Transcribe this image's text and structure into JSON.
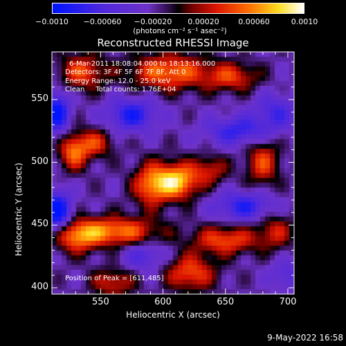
{
  "colorbar": {
    "min": -0.001,
    "max": 0.001,
    "tick_labels": [
      "−0.0010",
      "−0.00060",
      "−0.00020",
      "0.00020",
      "0.00060",
      "0.0010"
    ],
    "units": "(photons cm⁻² s⁻¹ asec⁻²)"
  },
  "chart_data": {
    "type": "heatmap",
    "title": "Reconstructed RHESSI Image",
    "xlabel": "Heliocentric X (arcsec)",
    "ylabel": "Heliocentric Y (arcsec)",
    "xlim": [
      511,
      705
    ],
    "ylim": [
      395,
      588
    ],
    "x_ticks": [
      550,
      600,
      650,
      700
    ],
    "y_ticks": [
      400,
      450,
      500,
      550
    ],
    "x_tick_labels": [
      "550",
      "600",
      "650",
      "700"
    ],
    "y_tick_labels": [
      "400",
      "450",
      "500",
      "550"
    ],
    "annotations": [
      "6-Mar-2011 18:08:04.000 to 18:13:16.000",
      "Detectors: 3F 4F 5F 6F 7F 8F, Att 0",
      "Energy Range: 12.0 - 25.0 keV",
      "Clean     Total counts: 1.76E+04"
    ],
    "peak_label": "Position of Peak = [611,485]",
    "peak": [
      611,
      485
    ],
    "sources": [
      {
        "x": 611,
        "y": 485,
        "amp": 0.001,
        "sx": 12,
        "sy": 10
      },
      {
        "x": 590,
        "y": 482,
        "amp": 0.0007,
        "sx": 10,
        "sy": 12
      },
      {
        "x": 638,
        "y": 494,
        "amp": 0.00045,
        "sx": 10,
        "sy": 8
      },
      {
        "x": 528,
        "y": 508,
        "amp": 0.0007,
        "sx": 8,
        "sy": 10
      },
      {
        "x": 545,
        "y": 515,
        "amp": 0.00055,
        "sx": 10,
        "sy": 8
      },
      {
        "x": 605,
        "y": 572,
        "amp": 0.00075,
        "sx": 22,
        "sy": 10
      },
      {
        "x": 655,
        "y": 568,
        "amp": 0.00055,
        "sx": 15,
        "sy": 8
      },
      {
        "x": 535,
        "y": 572,
        "amp": 0.0006,
        "sx": 13,
        "sy": 10
      },
      {
        "x": 680,
        "y": 500,
        "amp": 0.0006,
        "sx": 9,
        "sy": 13
      },
      {
        "x": 560,
        "y": 445,
        "amp": 0.0008,
        "sx": 25,
        "sy": 8
      },
      {
        "x": 530,
        "y": 440,
        "amp": 0.0006,
        "sx": 12,
        "sy": 9
      },
      {
        "x": 650,
        "y": 438,
        "amp": 0.00065,
        "sx": 18,
        "sy": 8
      },
      {
        "x": 690,
        "y": 445,
        "amp": 0.00045,
        "sx": 10,
        "sy": 10
      },
      {
        "x": 622,
        "y": 412,
        "amp": 0.00065,
        "sx": 14,
        "sy": 10
      },
      {
        "x": 560,
        "y": 404,
        "amp": 0.0005,
        "sx": 12,
        "sy": 8
      },
      {
        "x": 575,
        "y": 538,
        "amp": -0.00065,
        "sx": 14,
        "sy": 9
      },
      {
        "x": 515,
        "y": 540,
        "amp": -0.0008,
        "sx": 7,
        "sy": 12
      },
      {
        "x": 515,
        "y": 460,
        "amp": -0.0009,
        "sx": 8,
        "sy": 12
      },
      {
        "x": 665,
        "y": 465,
        "amp": -0.0006,
        "sx": 16,
        "sy": 8
      },
      {
        "x": 660,
        "y": 525,
        "amp": -0.00055,
        "sx": 18,
        "sy": 8
      },
      {
        "x": 690,
        "y": 540,
        "amp": -0.00045,
        "sx": 12,
        "sy": 10
      },
      {
        "x": 585,
        "y": 425,
        "amp": -0.0004,
        "sx": 12,
        "sy": 8
      },
      {
        "x": 700,
        "y": 410,
        "amp": -0.00035,
        "sx": 10,
        "sy": 8
      }
    ],
    "grid": false,
    "legend": "none"
  },
  "footer": {
    "date": "9-May-2022 16:58"
  }
}
